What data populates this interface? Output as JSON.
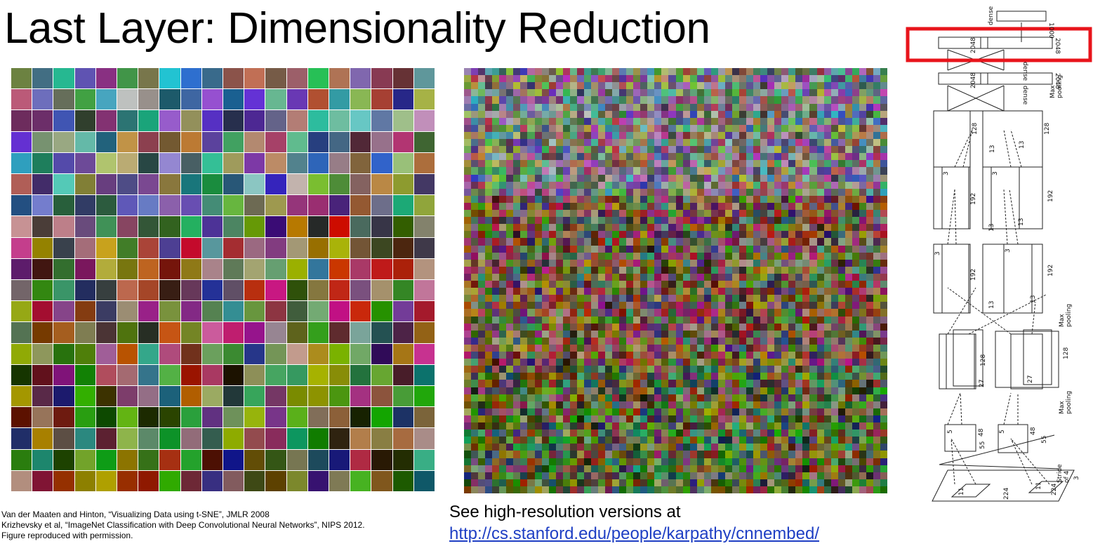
{
  "slide": {
    "title": "Last Layer: Dimensionality Reduction"
  },
  "references": {
    "line1": "Van der Maaten and Hinton, “Visualizing Data using t-SNE”, JMLR 2008",
    "line2": "Krizhevsky et al, “ImageNet Classification with Deep Convolutional Neural Networks”, NIPS 2012.",
    "line3": "Figure reproduced with permission."
  },
  "hires": {
    "text": "See high-resolution versions at",
    "link": "http://cs.stanford.edu/people/karpathy/cnnembed/"
  },
  "architecture": {
    "highlight_color": "#e8141b",
    "labels": {
      "dense": "dense",
      "out1000": "1000",
      "fc2048": "2048",
      "max_pooling_1": "Max",
      "max_pooling_2": "pooling",
      "n128": "128",
      "n192": "192",
      "n13": "13",
      "n27": "27",
      "n55": "55",
      "n48": "48",
      "n224": "224",
      "n3": "3",
      "n5": "5",
      "n11": "11",
      "stride_1": "Stride",
      "stride_2": "of 4"
    }
  }
}
